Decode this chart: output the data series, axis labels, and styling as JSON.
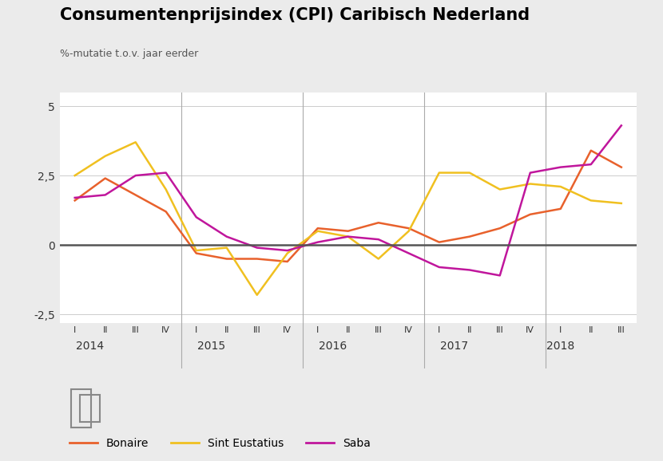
{
  "title": "Consumentenprijsindex (CPI) Caribisch Nederland",
  "subtitle": "%-mutatie t.o.v. jaar eerder",
  "ylim": [
    -2.8,
    5.5
  ],
  "yticks": [
    -2.5,
    0,
    2.5,
    5
  ],
  "background_color": "#ebebeb",
  "plot_bg_color": "#ffffff",
  "x_labels": [
    "I",
    "II",
    "III",
    "IV",
    "I",
    "II",
    "III",
    "IV",
    "I",
    "II",
    "III",
    "IV",
    "I",
    "II",
    "III",
    "IV",
    "I",
    "II",
    "III"
  ],
  "year_labels": [
    "2014",
    "2015",
    "2016",
    "2017",
    "2018"
  ],
  "year_positions": [
    1.5,
    5.5,
    9.5,
    13.5,
    17.0
  ],
  "year_dividers": [
    4,
    8,
    12,
    16
  ],
  "bonaire_color": "#e8612c",
  "sint_eustatius_color": "#f0c020",
  "saba_color": "#c0169c",
  "bonaire": [
    1.6,
    2.4,
    1.8,
    1.2,
    -0.3,
    -0.5,
    -0.5,
    -0.6,
    0.6,
    0.5,
    0.8,
    0.6,
    0.1,
    0.3,
    0.6,
    1.1,
    1.3,
    3.4,
    2.8
  ],
  "sint_eustatius": [
    2.5,
    3.2,
    3.7,
    2.0,
    -0.2,
    -0.1,
    -1.8,
    -0.3,
    0.5,
    0.3,
    -0.5,
    0.5,
    2.6,
    2.6,
    2.0,
    2.2,
    2.1,
    1.6,
    1.5
  ],
  "saba": [
    1.7,
    1.8,
    2.5,
    2.6,
    1.0,
    0.3,
    -0.1,
    -0.2,
    0.1,
    0.3,
    0.2,
    -0.3,
    -0.8,
    -0.9,
    -1.1,
    2.6,
    2.8,
    2.9,
    4.3
  ]
}
